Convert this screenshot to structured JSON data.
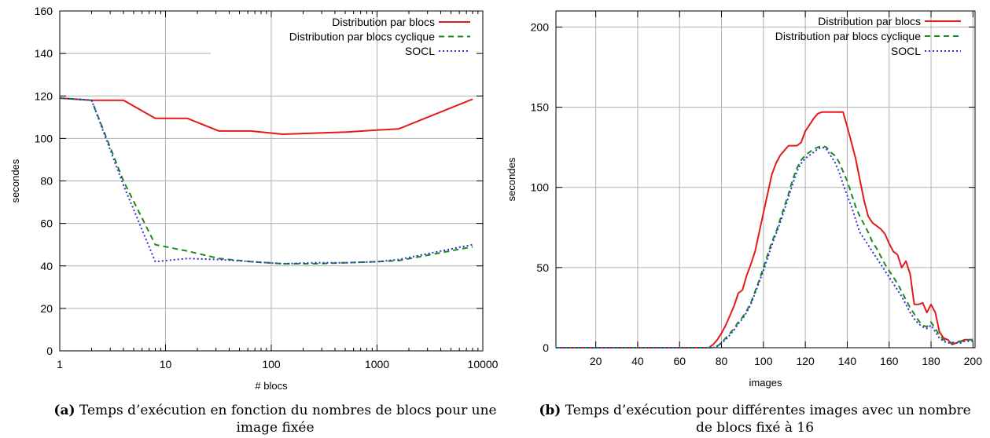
{
  "chart_data": [
    {
      "type": "line",
      "xlabel": "# blocs",
      "ylabel": "secondes",
      "xscale": "log",
      "xlim": [
        1,
        10000
      ],
      "ylim": [
        0,
        160
      ],
      "xticks": [
        1,
        10,
        100,
        1000,
        10000
      ],
      "xtick_labels": [
        "1",
        "10",
        "100",
        "1000",
        "10000"
      ],
      "yticks": [
        0,
        20,
        40,
        60,
        80,
        100,
        120,
        140,
        160
      ],
      "grid": true,
      "legend_position": "top-right",
      "series": [
        {
          "name": "Distribution par blocs",
          "color": "#e31a1c",
          "style": "solid",
          "x": [
            1,
            2,
            4,
            8,
            16,
            32,
            64,
            128,
            256,
            512,
            1024,
            1600,
            8000
          ],
          "y": [
            119,
            118,
            118,
            109.5,
            109.5,
            103.5,
            103.5,
            102,
            102.5,
            103,
            104,
            104.5,
            118.5
          ]
        },
        {
          "name": "Distribution par blocs cyclique",
          "color": "#1a8a1a",
          "style": "dashed",
          "x": [
            1,
            2,
            4,
            8,
            16,
            32,
            64,
            128,
            256,
            512,
            1024,
            1600,
            8000
          ],
          "y": [
            119,
            118,
            80,
            50,
            47,
            43.5,
            42,
            41,
            41,
            41.5,
            42,
            42.5,
            49
          ]
        },
        {
          "name": "SOCL",
          "color": "#3030d0",
          "style": "dotted",
          "x": [
            1,
            2,
            4,
            8,
            16,
            32,
            64,
            128,
            256,
            512,
            1024,
            1600,
            8000
          ],
          "y": [
            119,
            118,
            78,
            42,
            43.5,
            43,
            42,
            41,
            41.5,
            41.5,
            42,
            43,
            50
          ]
        }
      ],
      "caption_label": "(a)",
      "caption": "Temps d’exécution en fonction du nombres de blocs pour une image fixée"
    },
    {
      "type": "line",
      "xlabel": "images",
      "ylabel": "secondes",
      "xlim": [
        1,
        201
      ],
      "ylim": [
        0,
        210
      ],
      "xticks": [
        20,
        40,
        60,
        80,
        100,
        120,
        140,
        160,
        180,
        200
      ],
      "yticks": [
        0,
        50,
        100,
        150,
        200
      ],
      "grid": true,
      "legend_position": "top-right",
      "series": [
        {
          "name": "Distribution par blocs",
          "color": "#e31a1c",
          "style": "solid",
          "x": [
            1,
            74,
            76,
            78,
            80,
            82,
            84,
            86,
            88,
            90,
            92,
            94,
            96,
            98,
            100,
            102,
            104,
            106,
            108,
            110,
            112,
            114,
            116,
            118,
            120,
            122,
            124,
            126,
            128,
            130,
            132,
            134,
            136,
            138,
            140,
            142,
            144,
            146,
            148,
            150,
            152,
            154,
            156,
            158,
            160,
            162,
            164,
            166,
            168,
            170,
            172,
            174,
            176,
            178,
            180,
            182,
            184,
            186,
            188,
            190,
            192,
            194,
            196,
            198,
            200
          ],
          "y": [
            0,
            0,
            2,
            5,
            9,
            14,
            20,
            26,
            34,
            36,
            45,
            52,
            60,
            72,
            84,
            96,
            108,
            115,
            120,
            123,
            126,
            126,
            126,
            128,
            135,
            139,
            143,
            146,
            147,
            147,
            147,
            147,
            147,
            147,
            138,
            128,
            118,
            105,
            92,
            82,
            78,
            76,
            74,
            71,
            65,
            60,
            58,
            50,
            54,
            46,
            27,
            27,
            28,
            22,
            27,
            22,
            10,
            6,
            5,
            2,
            3,
            4,
            5,
            5,
            5
          ]
        },
        {
          "name": "Distribution par blocs cyclique",
          "color": "#1a8a1a",
          "style": "dashed",
          "x": [
            1,
            76,
            78,
            80,
            82,
            84,
            86,
            88,
            90,
            92,
            94,
            96,
            98,
            100,
            102,
            104,
            106,
            108,
            110,
            112,
            114,
            116,
            118,
            120,
            122,
            124,
            126,
            128,
            130,
            132,
            134,
            136,
            138,
            140,
            142,
            144,
            146,
            148,
            150,
            152,
            154,
            156,
            158,
            160,
            162,
            164,
            166,
            168,
            170,
            172,
            174,
            176,
            178,
            180,
            182,
            184,
            186,
            188,
            190,
            192,
            194,
            196,
            198,
            200
          ],
          "y": [
            0,
            0,
            1,
            3,
            6,
            9,
            12,
            16,
            19,
            23,
            28,
            35,
            42,
            50,
            58,
            66,
            72,
            80,
            88,
            96,
            105,
            112,
            117,
            120,
            122,
            124,
            125,
            126,
            125,
            122,
            120,
            116,
            110,
            104,
            96,
            88,
            82,
            77,
            72,
            66,
            62,
            57,
            52,
            48,
            44,
            40,
            35,
            30,
            25,
            21,
            17,
            14,
            13,
            16,
            12,
            8,
            5,
            4,
            3,
            4,
            4,
            4,
            5,
            5
          ]
        },
        {
          "name": "SOCL",
          "color": "#3030d0",
          "style": "dotted",
          "x": [
            1,
            76,
            78,
            80,
            82,
            84,
            86,
            88,
            90,
            92,
            94,
            96,
            98,
            100,
            102,
            104,
            106,
            108,
            110,
            112,
            114,
            116,
            118,
            120,
            122,
            124,
            126,
            128,
            130,
            132,
            134,
            136,
            138,
            140,
            142,
            144,
            146,
            148,
            150,
            152,
            154,
            156,
            158,
            160,
            162,
            164,
            166,
            168,
            170,
            172,
            174,
            176,
            178,
            180,
            182,
            184,
            186,
            188,
            190,
            192,
            194,
            196,
            198,
            200
          ],
          "y": [
            0,
            0,
            1,
            3,
            5,
            8,
            11,
            15,
            18,
            22,
            27,
            34,
            41,
            48,
            56,
            64,
            71,
            78,
            86,
            94,
            102,
            110,
            115,
            118,
            120,
            122,
            124,
            125,
            124,
            120,
            116,
            110,
            102,
            95,
            88,
            80,
            72,
            68,
            64,
            60,
            56,
            52,
            48,
            44,
            40,
            36,
            32,
            27,
            22,
            18,
            15,
            13,
            12,
            14,
            10,
            6,
            4,
            3,
            3,
            3,
            3,
            4,
            4,
            4
          ]
        }
      ],
      "caption_label": "(b)",
      "caption": "Temps d’exécution pour différentes images avec un nombre de blocs fixé à 16"
    }
  ]
}
